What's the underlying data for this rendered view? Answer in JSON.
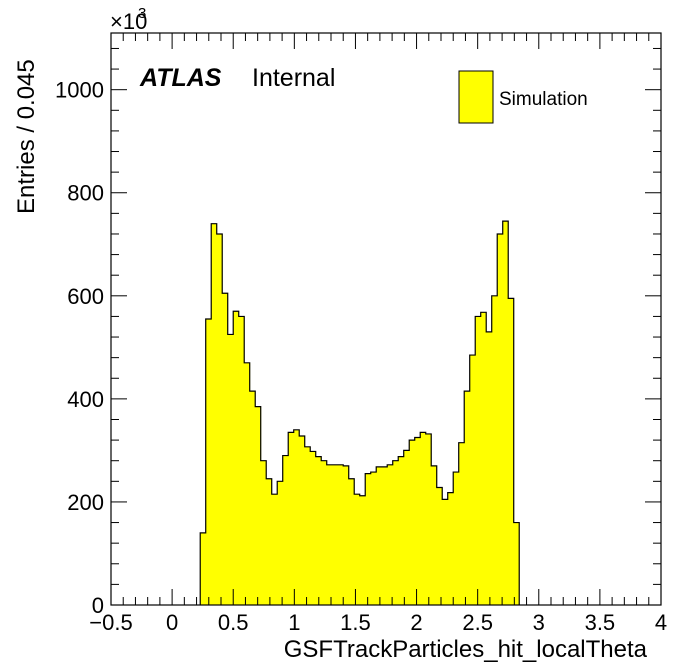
{
  "chart_data": {
    "type": "bar",
    "histogram": true,
    "xlabel": "GSFTrackParticles_hit_localTheta",
    "ylabel": "Entries / 0.045",
    "y_multiplier": "×10",
    "y_multiplier_exponent": "3",
    "xlim": [
      -0.5,
      4.0
    ],
    "ylim": [
      0,
      1110
    ],
    "x_ticks": [
      "−0.5",
      "0",
      "0.5",
      "1",
      "1.5",
      "2",
      "2.5",
      "3",
      "3.5",
      "4"
    ],
    "x_tick_values": [
      -0.5,
      0,
      0.5,
      1.0,
      1.5,
      2.0,
      2.5,
      3.0,
      3.5,
      4.0
    ],
    "y_ticks": [
      "0",
      "200",
      "400",
      "600",
      "800",
      "1000"
    ],
    "y_tick_values": [
      0,
      200,
      400,
      600,
      800,
      1000
    ],
    "bin_width": 0.045,
    "bin_start": 0.23,
    "series": [
      {
        "name": "Simulation",
        "color": "#ffff00",
        "edge_color": "#000000",
        "values": [
          140,
          555,
          740,
          720,
          605,
          525,
          570,
          560,
          470,
          415,
          385,
          280,
          245,
          215,
          240,
          290,
          335,
          340,
          328,
          307,
          298,
          288,
          280,
          272,
          272,
          272,
          270,
          245,
          215,
          212,
          255,
          258,
          268,
          268,
          272,
          280,
          288,
          300,
          320,
          325,
          335,
          332,
          270,
          228,
          205,
          218,
          258,
          315,
          415,
          485,
          560,
          568,
          530,
          600,
          720,
          745,
          595,
          160
        ]
      }
    ],
    "legend": {
      "position": "top-right",
      "entries": [
        "Simulation"
      ]
    },
    "annotation": {
      "bold": "ATLAS",
      "normal": "Internal"
    },
    "grid": false
  }
}
